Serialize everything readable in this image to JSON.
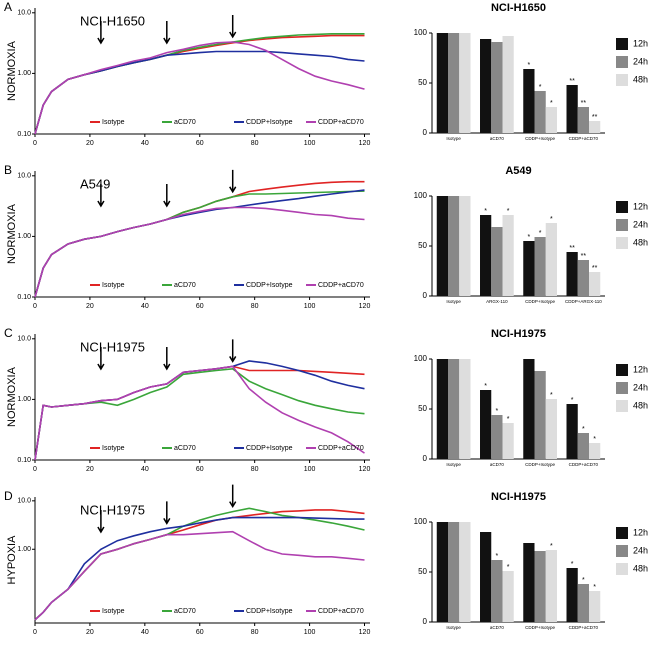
{
  "chart_data": [
    {
      "type": "line",
      "panel": "A",
      "title": "NCI-H1650",
      "ylabel": "NORMOXIA",
      "log_y": true,
      "x": [
        0,
        3,
        6,
        12,
        18,
        24,
        30,
        36,
        42,
        48,
        54,
        60,
        66,
        72,
        78,
        84,
        90,
        96,
        102,
        108,
        114,
        120
      ],
      "xlim": [
        0,
        122
      ],
      "xticks": [
        0,
        20,
        40,
        60,
        80,
        100,
        120
      ],
      "ylim": [
        0.1,
        12
      ],
      "yticks": [
        {
          "value": 0.1,
          "label": "0.10"
        },
        {
          "value": 1,
          "label": "1.00"
        },
        {
          "value": 10,
          "label": "10.0"
        }
      ],
      "arrows": [
        24,
        48,
        72
      ],
      "series": [
        {
          "name": "Isotype",
          "color": "#e02424",
          "values": [
            0.1,
            0.3,
            0.5,
            0.8,
            0.95,
            1.1,
            1.3,
            1.5,
            1.7,
            2.0,
            2.3,
            2.6,
            2.9,
            3.2,
            3.5,
            3.7,
            3.9,
            4.0,
            4.1,
            4.2,
            4.2,
            4.2
          ]
        },
        {
          "name": "aCD70",
          "color": "#3aa63a",
          "values": [
            0.1,
            0.3,
            0.5,
            0.8,
            0.95,
            1.1,
            1.3,
            1.5,
            1.7,
            2.0,
            2.4,
            2.7,
            3.0,
            3.3,
            3.6,
            3.9,
            4.1,
            4.3,
            4.4,
            4.5,
            4.5,
            4.5
          ]
        },
        {
          "name": "CDDP+Isotype",
          "color": "#1f2f9f",
          "values": [
            0.1,
            0.3,
            0.5,
            0.8,
            0.95,
            1.1,
            1.3,
            1.5,
            1.7,
            2.0,
            2.1,
            2.2,
            2.3,
            2.3,
            2.3,
            2.3,
            2.2,
            2.1,
            2.0,
            1.9,
            1.7,
            1.6
          ]
        },
        {
          "name": "CDDP+aCD70",
          "color": "#b040b0",
          "values": [
            0.1,
            0.3,
            0.5,
            0.8,
            0.95,
            1.15,
            1.35,
            1.6,
            1.8,
            2.2,
            2.5,
            2.9,
            3.2,
            3.3,
            3.0,
            2.4,
            1.7,
            1.2,
            0.9,
            0.75,
            0.65,
            0.55
          ]
        }
      ]
    },
    {
      "type": "bar",
      "title": "NCI-H1650",
      "categories": [
        "Isotype",
        "aCD70",
        "CDDP+Isotype",
        "CDDP+aCD70"
      ],
      "ylim": [
        0,
        100
      ],
      "yticks": [
        0,
        50,
        100
      ],
      "series": [
        {
          "name": "12h",
          "color": "#111111",
          "values": [
            100,
            94,
            64,
            48
          ],
          "stars": [
            null,
            null,
            "*",
            "**"
          ]
        },
        {
          "name": "24h",
          "color": "#888888",
          "values": [
            100,
            91,
            42,
            26
          ],
          "stars": [
            null,
            null,
            "*",
            "**"
          ]
        },
        {
          "name": "48h",
          "color": "#dddddd",
          "values": [
            100,
            97,
            26,
            12
          ],
          "stars": [
            null,
            null,
            "*",
            "**"
          ]
        }
      ]
    },
    {
      "type": "line",
      "panel": "B",
      "title": "A549",
      "ylabel": "NORMOXIA",
      "log_y": true,
      "x": [
        0,
        3,
        6,
        12,
        18,
        24,
        30,
        36,
        42,
        48,
        54,
        60,
        66,
        72,
        78,
        84,
        90,
        96,
        102,
        108,
        114,
        120
      ],
      "xlim": [
        0,
        122
      ],
      "xticks": [
        0,
        20,
        40,
        60,
        80,
        100,
        120
      ],
      "ylim": [
        0.1,
        12
      ],
      "yticks": [
        {
          "value": 0.1,
          "label": "0.10"
        },
        {
          "value": 1,
          "label": "1.00"
        },
        {
          "value": 10,
          "label": "10.0"
        }
      ],
      "arrows": [
        24,
        48,
        72
      ],
      "series": [
        {
          "name": "Isotype",
          "color": "#e02424",
          "values": [
            0.1,
            0.3,
            0.5,
            0.75,
            0.9,
            1.0,
            1.2,
            1.4,
            1.6,
            1.9,
            2.5,
            3.0,
            3.8,
            4.5,
            5.5,
            6.0,
            6.5,
            7.0,
            7.5,
            7.8,
            8.0,
            8.0
          ]
        },
        {
          "name": "aCD70",
          "color": "#3aa63a",
          "values": [
            0.1,
            0.3,
            0.5,
            0.75,
            0.9,
            1.0,
            1.2,
            1.4,
            1.6,
            1.9,
            2.5,
            3.0,
            3.8,
            4.5,
            5.0,
            5.0,
            5.1,
            5.2,
            5.3,
            5.4,
            5.5,
            5.6
          ]
        },
        {
          "name": "CDDP+Isotype",
          "color": "#1f2f9f",
          "values": [
            0.1,
            0.3,
            0.5,
            0.75,
            0.9,
            1.0,
            1.2,
            1.4,
            1.6,
            1.9,
            2.2,
            2.5,
            2.8,
            3.0,
            3.3,
            3.6,
            3.9,
            4.2,
            4.6,
            5.0,
            5.4,
            5.8
          ]
        },
        {
          "name": "CDDP+aCD70",
          "color": "#b040b0",
          "values": [
            0.1,
            0.3,
            0.5,
            0.75,
            0.9,
            1.0,
            1.2,
            1.4,
            1.6,
            1.9,
            2.3,
            2.6,
            2.9,
            3.0,
            3.0,
            2.9,
            2.7,
            2.5,
            2.3,
            2.2,
            2.0,
            1.9
          ]
        }
      ]
    },
    {
      "type": "bar",
      "title": "A549",
      "categories": [
        "Isotype",
        "ARGX-110",
        "CDDP+Isotype",
        "CDDP+ARGX-110"
      ],
      "ylim": [
        0,
        100
      ],
      "yticks": [
        0,
        50,
        100
      ],
      "series": [
        {
          "name": "12h",
          "color": "#111111",
          "values": [
            100,
            81,
            55,
            44
          ],
          "stars": [
            null,
            "*",
            "*",
            "**"
          ]
        },
        {
          "name": "24h",
          "color": "#888888",
          "values": [
            100,
            69,
            59,
            36
          ],
          "stars": [
            null,
            null,
            "*",
            "**"
          ]
        },
        {
          "name": "48h",
          "color": "#dddddd",
          "values": [
            100,
            81,
            73,
            24
          ],
          "stars": [
            null,
            "*",
            "*",
            "**"
          ]
        }
      ]
    },
    {
      "type": "line",
      "panel": "C",
      "title": "NCI-H1975",
      "ylabel": "NORMOXIA",
      "log_y": true,
      "x": [
        0,
        3,
        6,
        12,
        18,
        24,
        30,
        36,
        42,
        48,
        54,
        60,
        66,
        72,
        78,
        84,
        90,
        96,
        102,
        108,
        114,
        120
      ],
      "xlim": [
        0,
        122
      ],
      "xticks": [
        0,
        20,
        40,
        60,
        80,
        100,
        120
      ],
      "ylim": [
        0.1,
        12
      ],
      "yticks": [
        {
          "value": 0.1,
          "label": "0.10"
        },
        {
          "value": 1,
          "label": "1.00"
        },
        {
          "value": 10,
          "label": "10.0"
        }
      ],
      "arrows": [
        24,
        48,
        72
      ],
      "series": [
        {
          "name": "Isotype",
          "color": "#e02424",
          "values": [
            0.1,
            0.8,
            0.75,
            0.8,
            0.85,
            0.95,
            1.0,
            1.3,
            1.6,
            1.8,
            2.8,
            3.0,
            3.2,
            3.5,
            3.0,
            3.0,
            3.0,
            3.0,
            2.9,
            2.8,
            2.7,
            2.6
          ]
        },
        {
          "name": "aCD70",
          "color": "#3aa63a",
          "values": [
            0.1,
            0.8,
            0.75,
            0.8,
            0.85,
            0.9,
            0.8,
            1.0,
            1.3,
            1.6,
            2.6,
            2.8,
            3.0,
            3.2,
            2.0,
            1.5,
            1.2,
            0.95,
            0.8,
            0.7,
            0.62,
            0.58
          ]
        },
        {
          "name": "CDDP+Isotype",
          "color": "#1f2f9f",
          "values": [
            0.1,
            0.8,
            0.75,
            0.8,
            0.85,
            0.95,
            1.0,
            1.3,
            1.6,
            1.8,
            2.8,
            3.0,
            3.2,
            3.5,
            4.3,
            4.0,
            3.5,
            3.0,
            2.5,
            2.0,
            1.7,
            1.5
          ]
        },
        {
          "name": "CDDP+aCD70",
          "color": "#b040b0",
          "values": [
            0.1,
            0.8,
            0.75,
            0.8,
            0.85,
            0.95,
            1.0,
            1.3,
            1.6,
            1.8,
            2.8,
            3.0,
            3.2,
            3.5,
            1.5,
            0.9,
            0.6,
            0.45,
            0.35,
            0.28,
            0.2,
            0.13
          ]
        }
      ]
    },
    {
      "type": "bar",
      "title": "NCI-H1975",
      "categories": [
        "Isotype",
        "aCD70",
        "CDDP+Isotype",
        "CDDP+aCD70"
      ],
      "ylim": [
        0,
        100
      ],
      "yticks": [
        0,
        50,
        100
      ],
      "series": [
        {
          "name": "12h",
          "color": "#111111",
          "values": [
            100,
            69,
            100,
            55
          ],
          "stars": [
            null,
            "*",
            null,
            "*"
          ]
        },
        {
          "name": "24h",
          "color": "#888888",
          "values": [
            100,
            44,
            88,
            26
          ],
          "stars": [
            null,
            "*",
            null,
            "*"
          ]
        },
        {
          "name": "48h",
          "color": "#dddddd",
          "values": [
            100,
            36,
            60,
            16
          ],
          "stars": [
            null,
            "*",
            "*",
            "*"
          ]
        }
      ]
    },
    {
      "type": "line",
      "panel": "D",
      "title": "NCI-H1975",
      "ylabel": "HYPOXIA",
      "log_y": true,
      "x": [
        0,
        3,
        6,
        12,
        18,
        24,
        30,
        36,
        42,
        48,
        54,
        60,
        66,
        72,
        78,
        84,
        90,
        96,
        102,
        108,
        114,
        120
      ],
      "xlim": [
        0,
        122
      ],
      "xticks": [
        0,
        20,
        40,
        60,
        80,
        100,
        120
      ],
      "ylim": [
        0.03,
        12
      ],
      "yticks": [
        {
          "value": 1,
          "label": "1.00"
        },
        {
          "value": 10,
          "label": "10.0"
        }
      ],
      "arrows": [
        24,
        48,
        72
      ],
      "series": [
        {
          "name": "Isotype",
          "color": "#e02424",
          "values": [
            0.035,
            0.05,
            0.08,
            0.15,
            0.35,
            0.8,
            1.0,
            1.3,
            1.6,
            2.0,
            2.5,
            3.2,
            4.0,
            4.5,
            5.0,
            5.5,
            6.0,
            6.2,
            6.5,
            6.5,
            6.0,
            5.5
          ]
        },
        {
          "name": "aCD70",
          "color": "#3aa63a",
          "values": [
            0.035,
            0.05,
            0.08,
            0.15,
            0.35,
            0.8,
            1.0,
            1.3,
            1.6,
            2.0,
            3.0,
            4.0,
            5.0,
            6.0,
            7.0,
            6.0,
            5.0,
            4.5,
            4.0,
            3.5,
            3.0,
            2.5
          ]
        },
        {
          "name": "CDDP+Isotype",
          "color": "#1f2f9f",
          "values": [
            0.035,
            0.05,
            0.08,
            0.15,
            0.5,
            1.0,
            1.5,
            1.9,
            2.3,
            2.7,
            3.0,
            3.5,
            4.0,
            4.5,
            4.5,
            4.5,
            4.5,
            4.5,
            4.4,
            4.3,
            4.2,
            4.2
          ]
        },
        {
          "name": "CDDP+aCD70",
          "color": "#b040b0",
          "values": [
            0.035,
            0.05,
            0.08,
            0.15,
            0.35,
            0.8,
            1.0,
            1.3,
            1.6,
            2.0,
            2.0,
            2.1,
            2.2,
            2.3,
            1.5,
            1.0,
            0.8,
            0.75,
            0.7,
            0.7,
            0.65,
            0.6
          ]
        }
      ]
    },
    {
      "type": "bar",
      "title": "NCI-H1975",
      "categories": [
        "Isotype",
        "aCD70",
        "CDDP+Isotype",
        "CDDP+aCD70"
      ],
      "ylim": [
        0,
        100
      ],
      "yticks": [
        0,
        50,
        100
      ],
      "series": [
        {
          "name": "12h",
          "color": "#111111",
          "values": [
            100,
            90,
            79,
            54
          ],
          "stars": [
            null,
            null,
            null,
            "*"
          ]
        },
        {
          "name": "24h",
          "color": "#888888",
          "values": [
            100,
            62,
            71,
            38
          ],
          "stars": [
            null,
            "*",
            null,
            "*"
          ]
        },
        {
          "name": "48h",
          "color": "#dddddd",
          "values": [
            100,
            51,
            72,
            31
          ],
          "stars": [
            null,
            "*",
            "*",
            "*"
          ]
        }
      ]
    }
  ]
}
